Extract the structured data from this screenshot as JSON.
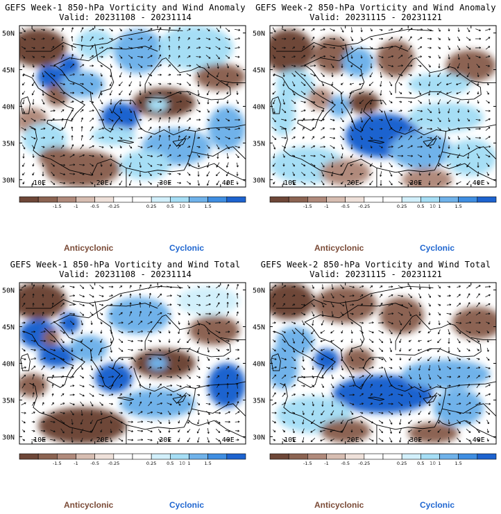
{
  "colors": {
    "anticyclonic": "#7a4a36",
    "cyclonic": "#1f66d0",
    "scale": [
      "#6e4738",
      "#8c6452",
      "#b08a7b",
      "#d7bdb1",
      "#efe1da",
      "#ffffff",
      "#ffffff",
      "#d2f0fb",
      "#a6def5",
      "#6fb2ea",
      "#3f8ee2",
      "#1d63cf"
    ],
    "land": "#ffffff"
  },
  "colorbar": {
    "labels": [
      "-1.5",
      "-1",
      "-0.5",
      "-0.25",
      "0.25",
      "0.5",
      "1",
      "1.5"
    ],
    "scale_note": "10"
  },
  "legend": {
    "anticyclonic": "Anticyclonic",
    "cyclonic": "Cyclonic"
  },
  "axes": {
    "lon_labels": [
      "10E",
      "20E",
      "30E",
      "40E"
    ],
    "lat_labels": [
      "50N",
      "45N",
      "40N",
      "35N",
      "30N"
    ]
  },
  "chart_data": [
    {
      "type": "heatmap",
      "title": "GEFS Week-1 850-hPa Vorticity and Wind Anomaly",
      "subtitle": "Valid: 20231108 - 20231114",
      "xlim": [
        8,
        44
      ],
      "ylim": [
        29,
        51
      ],
      "x_ticks": [
        "10E",
        "20E",
        "30E",
        "40E"
      ],
      "y_ticks": [
        "50N",
        "45N",
        "40N",
        "35N",
        "30N"
      ],
      "colorbar_levels": [
        -1.5,
        -1,
        -0.5,
        -0.25,
        0.25,
        0.5,
        1,
        1.5
      ],
      "features": [
        {
          "lon": 11,
          "lat": 48,
          "rx": 4.5,
          "ry": 2.6,
          "value": -1.8
        },
        {
          "lon": 13,
          "lat": 44,
          "rx": 2.2,
          "ry": 1.6,
          "value": 1.6
        },
        {
          "lon": 14,
          "lat": 41.5,
          "rx": 1.8,
          "ry": 1.5,
          "value": -1.2
        },
        {
          "lon": 16,
          "lat": 45.5,
          "rx": 1.6,
          "ry": 1.4,
          "value": 1.8
        },
        {
          "lon": 18,
          "lat": 43,
          "rx": 3.5,
          "ry": 1.8,
          "value": 1.2
        },
        {
          "lon": 10,
          "lat": 38,
          "rx": 2.5,
          "ry": 1.8,
          "value": -1.0
        },
        {
          "lon": 12,
          "lat": 35.5,
          "rx": 3.5,
          "ry": 2.2,
          "value": 0.9
        },
        {
          "lon": 18,
          "lat": 31.5,
          "rx": 6,
          "ry": 2.5,
          "value": -1.5
        },
        {
          "lon": 14,
          "lat": 33,
          "rx": 3,
          "ry": 1.5,
          "value": -1.2
        },
        {
          "lon": 24,
          "lat": 38.5,
          "rx": 3,
          "ry": 2,
          "value": 1.5
        },
        {
          "lon": 23,
          "lat": 36,
          "rx": 3.5,
          "ry": 1.3,
          "value": 0.8
        },
        {
          "lon": 31,
          "lat": 40.5,
          "rx": 5,
          "ry": 2,
          "value": -1.6
        },
        {
          "lon": 30,
          "lat": 40.2,
          "rx": 1.6,
          "ry": 0.9,
          "value": 0.9
        },
        {
          "lon": 33,
          "lat": 34.5,
          "rx": 5.5,
          "ry": 2.5,
          "value": 1.1
        },
        {
          "lon": 41,
          "lat": 37,
          "rx": 3,
          "ry": 3,
          "value": 1.4
        },
        {
          "lon": 28,
          "lat": 32,
          "rx": 4,
          "ry": 2,
          "value": 0.6
        },
        {
          "lon": 27,
          "lat": 47.5,
          "rx": 4,
          "ry": 3,
          "value": 1.2
        },
        {
          "lon": 36,
          "lat": 48,
          "rx": 6,
          "ry": 3,
          "value": 0.5
        },
        {
          "lon": 40,
          "lat": 44,
          "rx": 4,
          "ry": 1.8,
          "value": -1.3
        },
        {
          "lon": 20,
          "lat": 48.5,
          "rx": 3,
          "ry": 2,
          "value": 0.7
        }
      ]
    },
    {
      "type": "heatmap",
      "title": "GEFS Week-2 850-hPa Vorticity and Wind Anomaly",
      "subtitle": "Valid: 20231115 - 20231121",
      "xlim": [
        8,
        44
      ],
      "ylim": [
        29,
        51
      ],
      "x_ticks": [
        "10E",
        "20E",
        "30E",
        "40E"
      ],
      "y_ticks": [
        "50N",
        "45N",
        "40N",
        "35N",
        "30N"
      ],
      "colorbar_levels": [
        -1.5,
        -1,
        -0.5,
        -0.25,
        0.25,
        0.5,
        1,
        1.5
      ],
      "features": [
        {
          "lon": 11,
          "lat": 47.5,
          "rx": 4,
          "ry": 3,
          "value": -1.8
        },
        {
          "lon": 18,
          "lat": 47,
          "rx": 3,
          "ry": 2.5,
          "value": -1.2
        },
        {
          "lon": 22,
          "lat": 46,
          "rx": 2.5,
          "ry": 2,
          "value": 1.2
        },
        {
          "lon": 28,
          "lat": 46.5,
          "rx": 3,
          "ry": 2.5,
          "value": -1.5
        },
        {
          "lon": 40,
          "lat": 45.5,
          "rx": 4,
          "ry": 2.2,
          "value": -1.4
        },
        {
          "lon": 35,
          "lat": 43,
          "rx": 5,
          "ry": 1.5,
          "value": 0.6
        },
        {
          "lon": 12,
          "lat": 43,
          "rx": 3,
          "ry": 2,
          "value": 0.5
        },
        {
          "lon": 10,
          "lat": 39,
          "rx": 2,
          "ry": 3,
          "value": 0.8
        },
        {
          "lon": 16,
          "lat": 41,
          "rx": 2,
          "ry": 1.5,
          "value": -1.0
        },
        {
          "lon": 19,
          "lat": 40,
          "rx": 1.6,
          "ry": 1.5,
          "value": 1.4
        },
        {
          "lon": 23,
          "lat": 40.5,
          "rx": 2.5,
          "ry": 1.5,
          "value": -1.6
        },
        {
          "lon": 26,
          "lat": 36,
          "rx": 6,
          "ry": 3,
          "value": 1.6
        },
        {
          "lon": 32,
          "lat": 34,
          "rx": 5,
          "ry": 2.5,
          "value": 1.0
        },
        {
          "lon": 36,
          "lat": 38.5,
          "rx": 6,
          "ry": 2,
          "value": 0.7
        },
        {
          "lon": 40,
          "lat": 33,
          "rx": 4,
          "ry": 2.5,
          "value": 0.9
        },
        {
          "lon": 14,
          "lat": 32,
          "rx": 6,
          "ry": 2.5,
          "value": 0.5
        },
        {
          "lon": 20,
          "lat": 31,
          "rx": 4,
          "ry": 1.8,
          "value": -0.8
        },
        {
          "lon": 33,
          "lat": 30,
          "rx": 4,
          "ry": 1.6,
          "value": -0.9
        }
      ]
    },
    {
      "type": "heatmap",
      "title": "GEFS Week-1 850-hPa Vorticity and Wind Total",
      "subtitle": "Valid: 20231108 - 20231114",
      "xlim": [
        8,
        44
      ],
      "ylim": [
        29,
        51
      ],
      "x_ticks": [
        "10E",
        "20E",
        "30E",
        "40E"
      ],
      "y_ticks": [
        "50N",
        "45N",
        "40N",
        "35N",
        "30N"
      ],
      "colorbar_levels": [
        -1.5,
        -1,
        -0.5,
        -0.25,
        0.25,
        0.5,
        1,
        1.5
      ],
      "features": [
        {
          "lon": 11,
          "lat": 48.5,
          "rx": 4.5,
          "ry": 2.5,
          "value": -1.8
        },
        {
          "lon": 11,
          "lat": 44,
          "rx": 3,
          "ry": 2,
          "value": 1.7
        },
        {
          "lon": 14,
          "lat": 41,
          "rx": 3,
          "ry": 1.5,
          "value": 1.5
        },
        {
          "lon": 16,
          "lat": 45.5,
          "rx": 1.6,
          "ry": 1.4,
          "value": 1.8
        },
        {
          "lon": 13,
          "lat": 43.5,
          "rx": 1.3,
          "ry": 1.1,
          "value": -1.2
        },
        {
          "lon": 19,
          "lat": 42,
          "rx": 3,
          "ry": 1.8,
          "value": 1.3
        },
        {
          "lon": 10,
          "lat": 37,
          "rx": 2.5,
          "ry": 1.6,
          "value": -1.1
        },
        {
          "lon": 18,
          "lat": 31.5,
          "rx": 7,
          "ry": 2.5,
          "value": -1.6
        },
        {
          "lon": 23,
          "lat": 38,
          "rx": 3,
          "ry": 2,
          "value": 1.6
        },
        {
          "lon": 31,
          "lat": 40,
          "rx": 5,
          "ry": 2,
          "value": -1.6
        },
        {
          "lon": 30,
          "lat": 40,
          "rx": 1.5,
          "ry": 0.9,
          "value": 1.0
        },
        {
          "lon": 30,
          "lat": 34.5,
          "rx": 6,
          "ry": 2,
          "value": 1.3
        },
        {
          "lon": 41,
          "lat": 37,
          "rx": 3,
          "ry": 3,
          "value": 1.5
        },
        {
          "lon": 27,
          "lat": 46.5,
          "rx": 5,
          "ry": 2.5,
          "value": 1.0
        },
        {
          "lon": 39,
          "lat": 44.5,
          "rx": 4,
          "ry": 2,
          "value": -1.4
        },
        {
          "lon": 38,
          "lat": 48.5,
          "rx": 5,
          "ry": 2,
          "value": 0.4
        }
      ]
    },
    {
      "type": "heatmap",
      "title": "GEFS Week-2 850-hPa Vorticity and Wind Total",
      "subtitle": "Valid: 20231115 - 20231121",
      "xlim": [
        8,
        44
      ],
      "ylim": [
        29,
        51
      ],
      "x_ticks": [
        "10E",
        "20E",
        "30E",
        "40E"
      ],
      "y_ticks": [
        "50N",
        "45N",
        "40N",
        "35N",
        "30N"
      ],
      "colorbar_levels": [
        -1.5,
        -1,
        -0.5,
        -0.25,
        0.25,
        0.5,
        1,
        1.5
      ],
      "features": [
        {
          "lon": 11,
          "lat": 48.5,
          "rx": 4,
          "ry": 2.5,
          "value": -1.7
        },
        {
          "lon": 20,
          "lat": 48,
          "rx": 5,
          "ry": 2.5,
          "value": -1.2
        },
        {
          "lon": 29,
          "lat": 46.5,
          "rx": 3.5,
          "ry": 2.5,
          "value": -1.4
        },
        {
          "lon": 41,
          "lat": 45.5,
          "rx": 4,
          "ry": 2.2,
          "value": -1.5
        },
        {
          "lon": 12,
          "lat": 43,
          "rx": 3,
          "ry": 2,
          "value": 1.3
        },
        {
          "lon": 10,
          "lat": 39.5,
          "rx": 2.5,
          "ry": 3,
          "value": 1.4
        },
        {
          "lon": 17,
          "lat": 40.5,
          "rx": 2,
          "ry": 1.5,
          "value": 1.6
        },
        {
          "lon": 22,
          "lat": 40.5,
          "rx": 2.5,
          "ry": 1.6,
          "value": -1.5
        },
        {
          "lon": 26,
          "lat": 35.8,
          "rx": 8,
          "ry": 2.6,
          "value": 1.7
        },
        {
          "lon": 36,
          "lat": 38.5,
          "rx": 7,
          "ry": 2,
          "value": 1.0
        },
        {
          "lon": 38,
          "lat": 34,
          "rx": 4,
          "ry": 2.5,
          "value": 1.3
        },
        {
          "lon": 15,
          "lat": 33,
          "rx": 6,
          "ry": 2.5,
          "value": 0.7
        },
        {
          "lon": 20,
          "lat": 30.8,
          "rx": 4,
          "ry": 1.6,
          "value": -1.1
        },
        {
          "lon": 34,
          "lat": 30.5,
          "rx": 4,
          "ry": 1.4,
          "value": -1.2
        }
      ]
    }
  ]
}
